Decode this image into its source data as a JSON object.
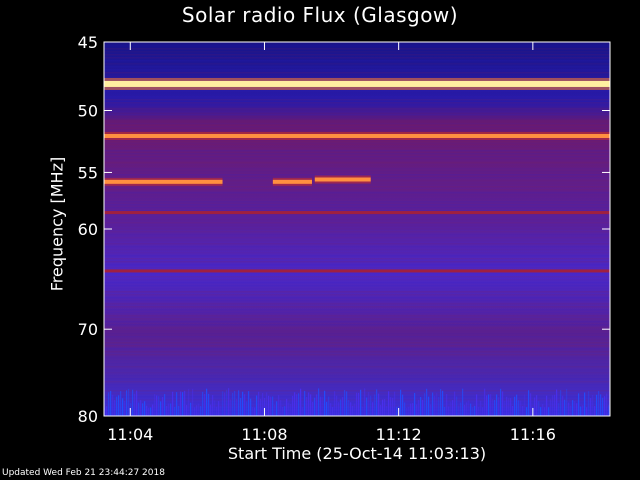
{
  "chart_data": {
    "type": "heatmap",
    "title": "Solar radio Flux (Glasgow)",
    "xlabel": "Start Time (25-Oct-14 11:03:13)",
    "ylabel": "Frequency [MHz]",
    "x_range": [
      "11:03:13",
      "11:18:18"
    ],
    "x_ticks": [
      "11:04",
      "11:08",
      "11:12",
      "11:16"
    ],
    "y_range": [
      45,
      80
    ],
    "y_ticks": [
      45,
      50,
      55,
      60,
      70,
      80
    ],
    "y_scale": "log",
    "grid": false,
    "colormap": [
      "#1a0080",
      "#3a28e0",
      "#7a1a9a",
      "#a02060",
      "#e04020",
      "#ff9040",
      "#ffe890",
      "#ffffff"
    ],
    "bands": [
      {
        "freq_mhz": 48.0,
        "level": "high",
        "start": "11:03:13",
        "end": "11:18:18"
      },
      {
        "freq_mhz": 52.0,
        "level": "medium",
        "start": "11:03:13",
        "end": "11:18:18"
      },
      {
        "freq_mhz": 55.8,
        "level": "medium",
        "start": "11:03:13",
        "end": "11:06:45"
      },
      {
        "freq_mhz": 55.8,
        "level": "medium",
        "start": "11:08:15",
        "end": "11:09:25"
      },
      {
        "freq_mhz": 55.6,
        "level": "medium",
        "start": "11:09:30",
        "end": "11:11:10"
      },
      {
        "freq_mhz": 58.5,
        "level": "low",
        "start": "11:03:13",
        "end": "11:18:18"
      },
      {
        "freq_mhz": 64.0,
        "level": "low",
        "start": "11:03:13",
        "end": "11:18:18"
      }
    ]
  },
  "footer": "Updated Wed Feb 21 23:44:27 2018"
}
